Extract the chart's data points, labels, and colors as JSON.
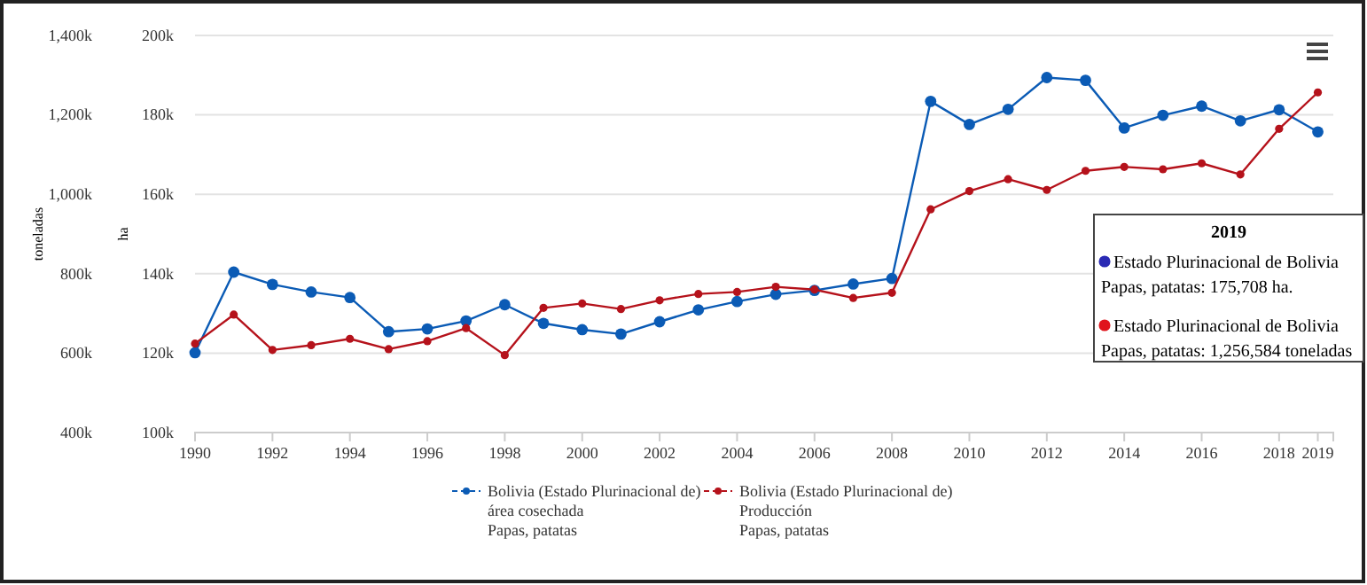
{
  "chart_data": {
    "type": "line",
    "ylabel": "toneladas",
    "y2label": "ha",
    "x": [
      1990,
      1991,
      1992,
      1993,
      1994,
      1995,
      1996,
      1997,
      1998,
      1999,
      2000,
      2001,
      2002,
      2003,
      2004,
      2005,
      2006,
      2007,
      2008,
      2009,
      2010,
      2011,
      2012,
      2013,
      2014,
      2015,
      2016,
      2017,
      2018,
      2019
    ],
    "series": [
      {
        "name": "Bolivia (Estado Plurinacional de)\nárea cosechada\nPapas, patatas",
        "color": "#0b5bb5",
        "axis": "y2",
        "values": [
          120.1,
          140.4,
          137.3,
          135.4,
          134.0,
          125.4,
          126.1,
          128.1,
          132.2,
          127.5,
          125.9,
          124.8,
          127.9,
          130.9,
          133.0,
          134.8,
          135.8,
          137.4,
          138.8,
          183.4,
          177.6,
          181.4,
          189.4,
          188.7,
          176.7,
          179.9,
          182.2,
          178.5,
          181.3,
          175.708
        ]
      },
      {
        "name": "Bolivia (Estado Plurinacional de)\nProducción\nPapas, patatas",
        "color": "#b5121b",
        "axis": "y",
        "values": [
          624,
          697,
          608,
          620,
          636,
          610,
          630,
          663,
          595,
          714,
          725,
          711,
          733,
          749,
          754,
          767,
          760,
          739,
          752,
          962,
          1008,
          1038,
          1011,
          1059,
          1069,
          1063,
          1078,
          1050,
          1165,
          1256.584
        ]
      }
    ],
    "xlim": [
      1990,
      2019.4
    ],
    "xticks": [
      1990,
      1992,
      1994,
      1996,
      1998,
      2000,
      2002,
      2004,
      2006,
      2008,
      2010,
      2012,
      2014,
      2016,
      2018,
      2019
    ],
    "ylim": [
      400,
      1400
    ],
    "yticks": [
      {
        "value": 400,
        "label": "400k"
      },
      {
        "value": 600,
        "label": "600k"
      },
      {
        "value": 800,
        "label": "800k"
      },
      {
        "value": 1000,
        "label": "1,000k"
      },
      {
        "value": 1200,
        "label": "1,200k"
      },
      {
        "value": 1400,
        "label": "1,400k"
      }
    ],
    "y2lim": [
      100,
      200
    ],
    "y2ticks": [
      {
        "value": 100,
        "label": "100k"
      },
      {
        "value": 120,
        "label": "120k"
      },
      {
        "value": 140,
        "label": "140k"
      },
      {
        "value": 160,
        "label": "160k"
      },
      {
        "value": 180,
        "label": "180k"
      },
      {
        "value": 200,
        "label": "200k"
      }
    ],
    "grid": "y",
    "legend": "bottom",
    "marker": "circle",
    "line_style": "solid",
    "annotations": [
      "2019",
      "Estado Plurinacional de Bolivia",
      "Papas, patatas: 175,708 ha.",
      "Estado Plurinacional de Bolivia",
      "Papas, patatas: 1,256,584 toneladas"
    ]
  }
}
